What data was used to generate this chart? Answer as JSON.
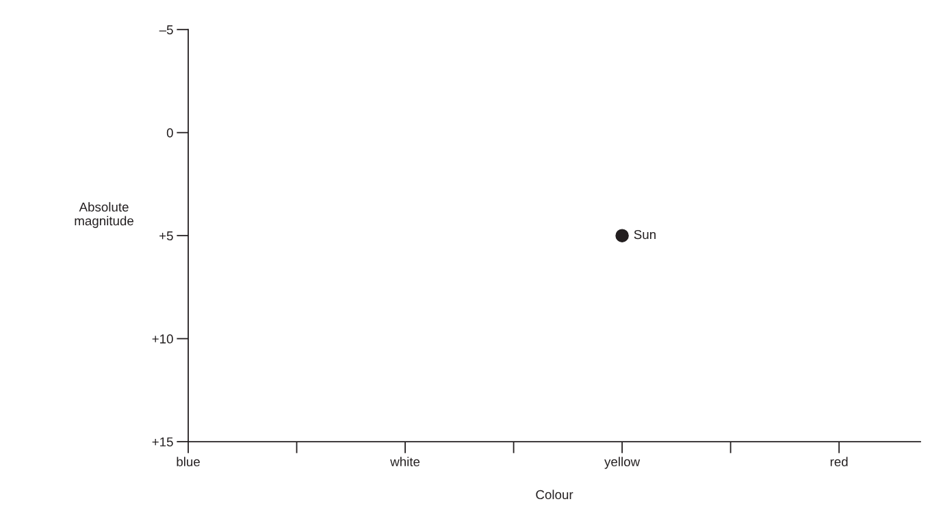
{
  "chart_data": {
    "type": "scatter",
    "xlabel": "Colour",
    "ylabel": "Absolute\nmagnitude",
    "categories": [
      "blue",
      null,
      "white",
      null,
      "yellow",
      null,
      "red"
    ],
    "series": [
      {
        "name": "Sun",
        "color": "#231f20",
        "values": [
          null,
          null,
          null,
          null,
          5,
          null,
          null
        ]
      }
    ],
    "ylim": [
      15,
      -5
    ],
    "yticks": [
      {
        "value": -5,
        "label": "–5"
      },
      0,
      {
        "value": 5,
        "label": "+5"
      },
      {
        "value": 10,
        "label": "+10"
      },
      {
        "value": 15,
        "label": "+15"
      }
    ],
    "marker": "circle",
    "grid": false,
    "legend": false
  }
}
